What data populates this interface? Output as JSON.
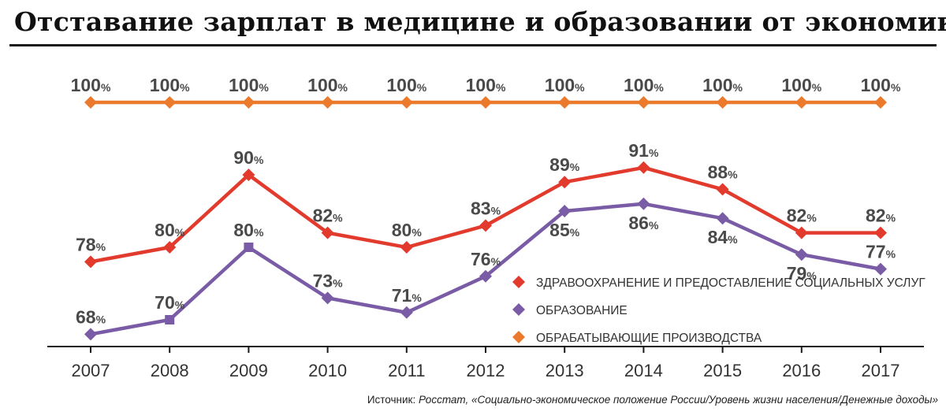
{
  "header": {
    "title": "Отставание зарплат в медицине и образовании от экономики"
  },
  "source": {
    "prefix": "Источник: ",
    "text": "Росстат, «Социально-экономическое положение России/Уровень жизни населения/Денежные доходы»"
  },
  "chart_data": {
    "type": "line",
    "title": "Отставание зарплат в медицине и образовании от экономики",
    "categories": [
      "2007",
      "2008",
      "2009",
      "2010",
      "2011",
      "2012",
      "2013",
      "2014",
      "2015",
      "2016",
      "2017"
    ],
    "value_suffix": "%",
    "ylim": [
      60,
      105
    ],
    "grid": false,
    "legend_position": "bottom-right",
    "series": [
      {
        "name": "ОБРАБАТЫВАЮЩИЕ ПРОИЗВОДСТВА",
        "values": [
          100,
          100,
          100,
          100,
          100,
          100,
          100,
          100,
          100,
          100,
          100
        ],
        "color": "#ec7a2c",
        "labels": [
          "100",
          "100",
          "100",
          "100",
          "100",
          "100",
          "100",
          "100",
          "100",
          "100",
          "100"
        ],
        "label_pos": [
          "above",
          "above",
          "above",
          "above",
          "above",
          "above",
          "above",
          "above",
          "above",
          "above",
          "above"
        ]
      },
      {
        "name": "ЗДРАВООХРАНЕНИЕ И ПРЕДОСТАВЛЕНИЕ СОЦИАЛЬНЫХ УСЛУГ",
        "values": [
          78,
          80,
          90,
          82,
          80,
          83,
          89,
          91,
          88,
          82,
          82
        ],
        "color": "#e23b2e",
        "labels": [
          "78",
          "80",
          "90",
          "82",
          "80",
          "83",
          "89",
          "91",
          "88",
          "82",
          "82"
        ],
        "label_pos": [
          "above",
          "above",
          "above",
          "above",
          "above",
          "above",
          "above",
          "above",
          "above",
          "above",
          "above"
        ]
      },
      {
        "name": "ОБРАЗОВАНИЕ",
        "values": [
          68,
          70,
          80,
          73,
          71,
          76,
          85,
          86,
          84,
          79,
          77
        ],
        "color": "#7a5ba6",
        "labels": [
          "68",
          "70",
          "80",
          "73",
          "71",
          "76",
          "85",
          "86",
          "84",
          "79",
          "77"
        ],
        "label_pos": [
          "above",
          "above",
          "above",
          "above",
          "above",
          "above",
          "below",
          "below",
          "below",
          "below",
          "above"
        ]
      }
    ],
    "legend": [
      {
        "name": "ЗДРАВООХРАНЕНИЕ И ПРЕДОСТАВЛЕНИЕ СОЦИАЛЬНЫХ УСЛУГ",
        "color": "#e23b2e"
      },
      {
        "name": "ОБРАЗОВАНИЕ",
        "color": "#7a5ba6"
      },
      {
        "name": "ОБРАБАТЫВАЮЩИЕ ПРОИЗВОДСТВА",
        "color": "#ec7a2c"
      }
    ]
  }
}
